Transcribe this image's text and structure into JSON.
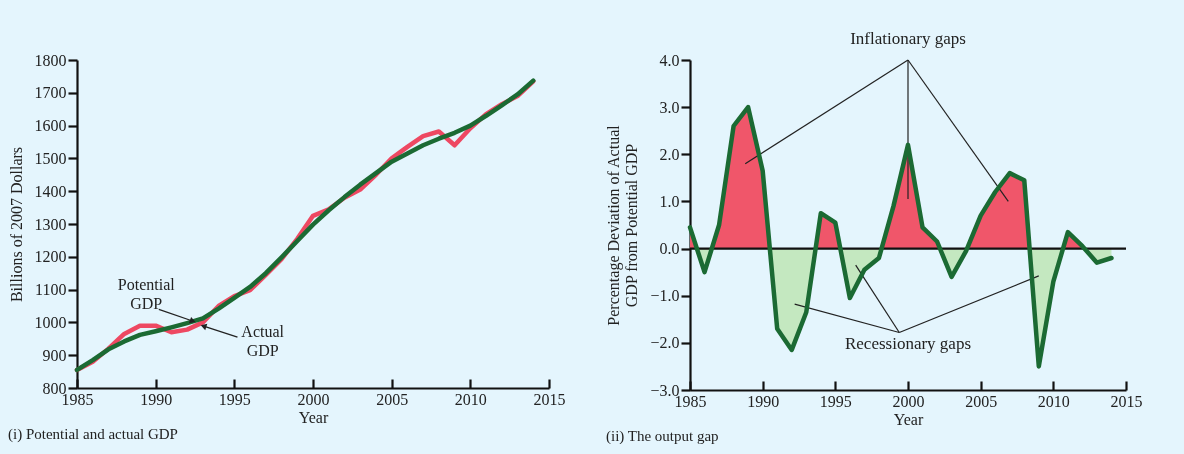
{
  "chart_data": [
    {
      "type": "line",
      "title": "(i) Potential and actual GDP",
      "xlabel": "Year",
      "ylabel": "Billions of 2007 Dollars",
      "x": [
        1985,
        1986,
        1987,
        1988,
        1989,
        1990,
        1991,
        1992,
        1993,
        1994,
        1995,
        1996,
        1997,
        1998,
        1999,
        2000,
        2001,
        2002,
        2003,
        2004,
        2005,
        2006,
        2007,
        2008,
        2009,
        2010,
        2011,
        2012,
        2013,
        2014
      ],
      "series": [
        {
          "name": "Actual GDP",
          "color": "#ee4862",
          "values": [
            855,
            880,
            920,
            965,
            990,
            990,
            970,
            978,
            1000,
            1050,
            1080,
            1098,
            1145,
            1193,
            1255,
            1325,
            1345,
            1380,
            1405,
            1450,
            1500,
            1535,
            1568,
            1582,
            1540,
            1592,
            1635,
            1665,
            1690,
            1735
          ]
        },
        {
          "name": "Potential GDP",
          "color": "#1b6a33",
          "values": [
            855,
            885,
            918,
            942,
            962,
            973,
            985,
            998,
            1012,
            1042,
            1075,
            1108,
            1150,
            1198,
            1248,
            1298,
            1342,
            1382,
            1420,
            1455,
            1490,
            1515,
            1540,
            1560,
            1578,
            1600,
            1630,
            1662,
            1695,
            1737
          ]
        }
      ],
      "xlim": [
        1985,
        2015
      ],
      "xticks": [
        1985,
        1990,
        1995,
        2000,
        2005,
        2010,
        2015
      ],
      "ylim": [
        800,
        1800
      ],
      "yticks": [
        800,
        900,
        1000,
        1100,
        1200,
        1300,
        1400,
        1500,
        1600,
        1700,
        1800
      ],
      "grid": false
    },
    {
      "type": "area",
      "title": "(ii) The output gap",
      "xlabel": "Year",
      "ylabel": "Percentage Deviation of Actual\nGDP from Potential GDP",
      "x": [
        1985,
        1986,
        1987,
        1988,
        1989,
        1990,
        1991,
        1992,
        1993,
        1994,
        1995,
        1996,
        1997,
        1998,
        1999,
        2000,
        2001,
        2002,
        2003,
        2004,
        2005,
        2006,
        2007,
        2008,
        2009,
        2010,
        2011,
        2012,
        2013,
        2014
      ],
      "series": [
        {
          "color": "#1b6a33",
          "values": [
            0.45,
            -0.5,
            0.5,
            2.6,
            3.0,
            1.65,
            -1.7,
            -2.15,
            -1.35,
            0.75,
            0.55,
            -1.05,
            -0.45,
            -0.2,
            0.9,
            2.2,
            0.45,
            0.15,
            -0.6,
            -0.05,
            0.7,
            1.2,
            1.6,
            1.45,
            -2.5,
            -0.7,
            0.35,
            0.05,
            -0.3,
            -0.2
          ]
        }
      ],
      "colors": [
        "#f0566a",
        "#c4e8c0"
      ],
      "xlim": [
        1985,
        2015
      ],
      "xticks": [
        1985,
        1990,
        1995,
        2000,
        2005,
        2010,
        2015
      ],
      "ylim": [
        -3,
        4
      ],
      "yticks": [
        {
          "value": -3,
          "label": "−3.0"
        },
        {
          "value": -2,
          "label": "−2.0"
        },
        {
          "value": -1,
          "label": "−1.0"
        },
        {
          "value": 0,
          "label": "0.0"
        },
        {
          "value": 1,
          "label": "1.0"
        },
        {
          "value": 2,
          "label": "2.0"
        },
        {
          "value": 3,
          "label": "3.0"
        },
        {
          "value": 4,
          "label": "4.0"
        }
      ],
      "ref_lines": [
        {
          "axis": "y",
          "value": 0,
          "color": "#111111"
        }
      ],
      "annotations": [
        "Inflationary gaps",
        "Recessionary gaps"
      ],
      "grid": false
    }
  ]
}
